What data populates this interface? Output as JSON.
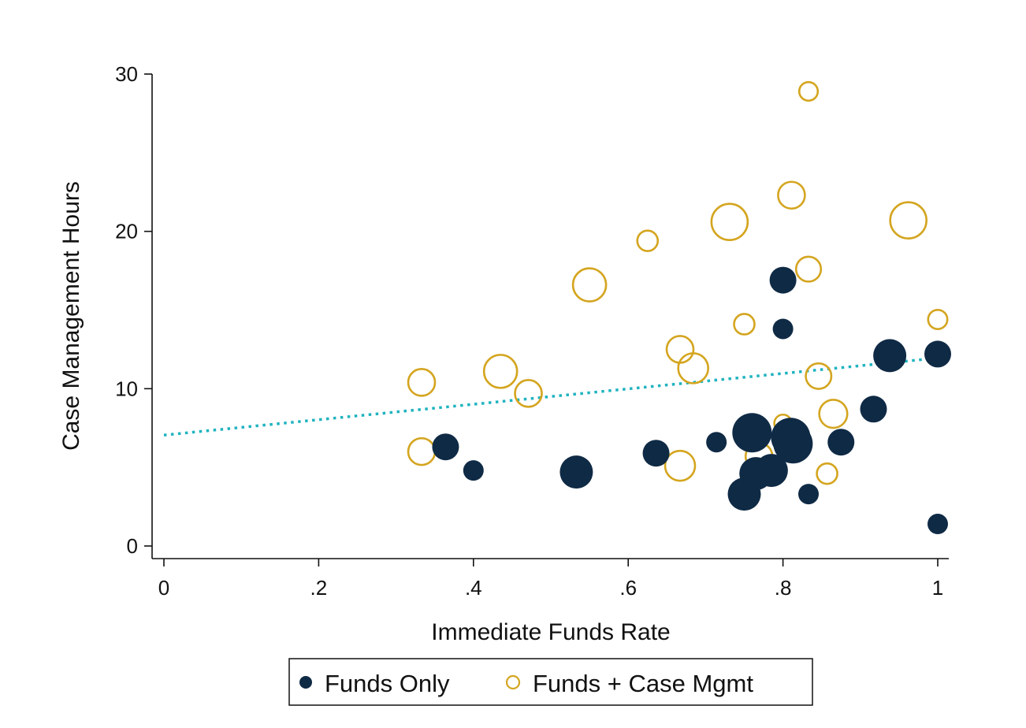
{
  "chart_data": {
    "type": "scatter",
    "title": "",
    "xlabel": "Immediate Funds Rate",
    "ylabel": "Case Management Hours",
    "xlim": [
      0,
      1
    ],
    "ylim": [
      0,
      30
    ],
    "xticks": [
      0,
      0.2,
      0.4,
      0.6,
      0.8,
      1
    ],
    "xtick_labels": [
      "0",
      ".2",
      ".4",
      ".6",
      ".8",
      "1"
    ],
    "yticks": [
      0,
      10,
      20,
      30
    ],
    "ytick_labels": [
      "0",
      "10",
      "20",
      "30"
    ],
    "grid": false,
    "legend_position": "bottom",
    "series": [
      {
        "name": "Funds Only",
        "marker": "filled-circle",
        "color": "#0f2a45",
        "points": [
          {
            "x": 0.364,
            "y": 6.3,
            "size": 3
          },
          {
            "x": 0.4,
            "y": 4.8,
            "size": 2
          },
          {
            "x": 0.533,
            "y": 4.7,
            "size": 4
          },
          {
            "x": 0.636,
            "y": 5.9,
            "size": 3
          },
          {
            "x": 0.714,
            "y": 6.6,
            "size": 2
          },
          {
            "x": 0.75,
            "y": 3.3,
            "size": 4
          },
          {
            "x": 0.76,
            "y": 7.2,
            "size": 5
          },
          {
            "x": 0.765,
            "y": 4.6,
            "size": 4
          },
          {
            "x": 0.785,
            "y": 4.8,
            "size": 4
          },
          {
            "x": 0.8,
            "y": 16.9,
            "size": 3
          },
          {
            "x": 0.8,
            "y": 13.8,
            "size": 2
          },
          {
            "x": 0.81,
            "y": 6.9,
            "size": 5
          },
          {
            "x": 0.813,
            "y": 6.5,
            "size": 5
          },
          {
            "x": 0.833,
            "y": 3.3,
            "size": 2
          },
          {
            "x": 0.875,
            "y": 6.6,
            "size": 3
          },
          {
            "x": 0.917,
            "y": 8.7,
            "size": 3
          },
          {
            "x": 0.938,
            "y": 12.1,
            "size": 4
          },
          {
            "x": 1.0,
            "y": 12.2,
            "size": 3
          },
          {
            "x": 1.0,
            "y": 1.4,
            "size": 2
          }
        ]
      },
      {
        "name": "Funds + Case Mgmt",
        "marker": "hollow-circle",
        "color": "#d4a51f",
        "points": [
          {
            "x": 0.333,
            "y": 10.4,
            "size": 3
          },
          {
            "x": 0.333,
            "y": 6.0,
            "size": 3
          },
          {
            "x": 0.435,
            "y": 11.1,
            "size": 4
          },
          {
            "x": 0.471,
            "y": 9.7,
            "size": 3
          },
          {
            "x": 0.55,
            "y": 16.6,
            "size": 4
          },
          {
            "x": 0.625,
            "y": 19.4,
            "size": 2
          },
          {
            "x": 0.667,
            "y": 12.5,
            "size": 3
          },
          {
            "x": 0.667,
            "y": 5.1,
            "size": 3.5
          },
          {
            "x": 0.684,
            "y": 11.3,
            "size": 3.5
          },
          {
            "x": 0.731,
            "y": 20.6,
            "size": 4.5
          },
          {
            "x": 0.75,
            "y": 14.1,
            "size": 2
          },
          {
            "x": 0.769,
            "y": 5.7,
            "size": 3
          },
          {
            "x": 0.8,
            "y": 7.8,
            "size": 1.5
          },
          {
            "x": 0.811,
            "y": 22.3,
            "size": 3
          },
          {
            "x": 0.833,
            "y": 28.9,
            "size": 1.7
          },
          {
            "x": 0.833,
            "y": 17.6,
            "size": 2.7
          },
          {
            "x": 0.846,
            "y": 10.8,
            "size": 2.8
          },
          {
            "x": 0.857,
            "y": 4.6,
            "size": 2
          },
          {
            "x": 0.865,
            "y": 8.4,
            "size": 3.2
          },
          {
            "x": 0.962,
            "y": 20.7,
            "size": 4.5
          },
          {
            "x": 1.0,
            "y": 14.4,
            "size": 1.8
          }
        ]
      }
    ],
    "fit_line": {
      "style": "dotted",
      "color": "#1fb3bf",
      "x": [
        0,
        1
      ],
      "y": [
        7.05,
        11.95
      ]
    }
  }
}
